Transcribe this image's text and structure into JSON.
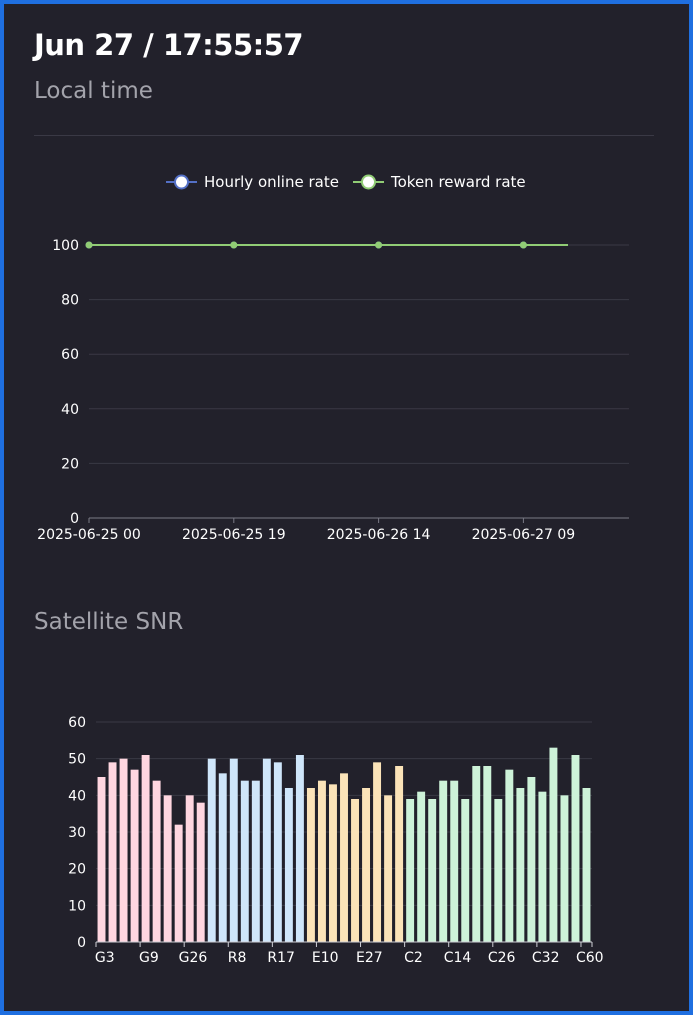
{
  "header": {
    "title": "Jun 27 / 17:55:57",
    "subtitle": "Local time"
  },
  "snr_section": {
    "title": "Satellite SNR"
  },
  "chart_data": [
    {
      "type": "line",
      "title": "",
      "legend": {
        "position": "top-center",
        "entries": [
          "Hourly online rate",
          "Token reward rate"
        ]
      },
      "x_tick_labels": [
        "2025-06-25 00",
        "2025-06-25 19",
        "2025-06-26 14",
        "2025-06-27 09"
      ],
      "ylim": [
        0,
        100
      ],
      "yticks": [
        0,
        20,
        40,
        60,
        80,
        100
      ],
      "grid": true,
      "series": [
        {
          "name": "Hourly online rate",
          "color": "#5470c6",
          "values": [
            100,
            100,
            100,
            100,
            100
          ]
        },
        {
          "name": "Token reward rate",
          "color": "#91cc75",
          "values": [
            100,
            100,
            100,
            100,
            100
          ]
        }
      ]
    },
    {
      "type": "bar",
      "title": "",
      "ylim": [
        0,
        60
      ],
      "yticks": [
        0,
        10,
        20,
        30,
        40,
        50,
        60
      ],
      "grid": true,
      "x_tick_labels": [
        "G3",
        "G9",
        "G26",
        "R8",
        "R17",
        "E10",
        "E27",
        "C2",
        "C14",
        "C26",
        "C32",
        "C60"
      ],
      "groups": [
        {
          "color": "#ffd6e0",
          "values": [
            45,
            49,
            50,
            47,
            51,
            44,
            40,
            32,
            40,
            38
          ]
        },
        {
          "color": "#cfe6fa",
          "values": [
            50,
            46,
            50,
            44,
            44,
            50,
            49,
            42,
            51
          ]
        },
        {
          "color": "#fbe3b8",
          "values": [
            42,
            44,
            43,
            46,
            39,
            42,
            49,
            40,
            48
          ]
        },
        {
          "color": "#cdf2d8",
          "values": [
            39,
            41,
            39,
            44,
            44,
            39,
            48,
            48,
            39,
            47,
            42,
            45,
            41,
            53,
            40,
            51,
            42
          ]
        }
      ]
    }
  ]
}
